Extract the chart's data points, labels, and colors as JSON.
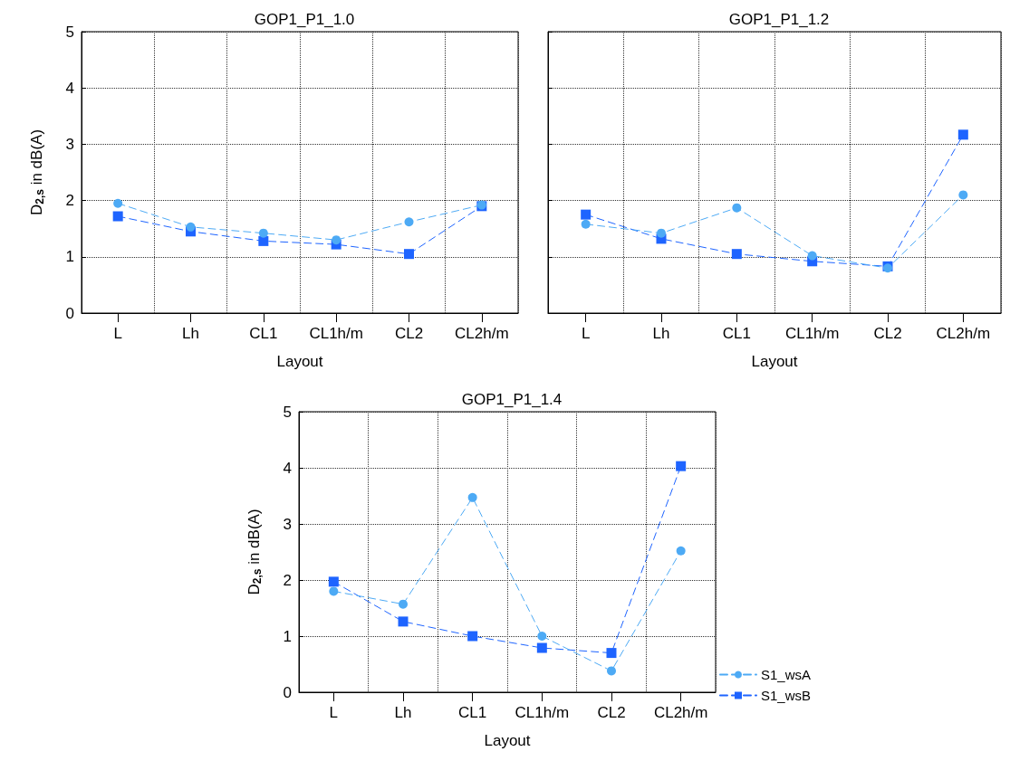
{
  "chart_data": [
    {
      "type": "line",
      "title": "GOP1_P1_1.0",
      "xlabel": "Layout",
      "ylabel": "D$_{2,s}$ in dB(A)",
      "categories": [
        "L",
        "Lh",
        "CL1",
        "CL1h/m",
        "CL2",
        "CL2h/m"
      ],
      "ylim": [
        0,
        5
      ],
      "yticks": [
        0,
        1,
        2,
        3,
        4,
        5
      ],
      "grid": true,
      "legend": false,
      "line_style": "dashed",
      "series": [
        {
          "color": "#4daaf5",
          "marker": "circle",
          "values": [
            1.95,
            1.53,
            1.42,
            1.3,
            1.62,
            1.92
          ]
        },
        {
          "color": "#1e64ff",
          "marker": "square",
          "values": [
            1.72,
            1.45,
            1.28,
            1.22,
            1.05,
            1.9
          ]
        }
      ]
    },
    {
      "type": "line",
      "title": "GOP1_P1_1.2",
      "xlabel": "Layout",
      "categories": [
        "L",
        "Lh",
        "CL1",
        "CL1h/m",
        "CL2",
        "CL2h/m"
      ],
      "ylim": [
        0,
        5
      ],
      "yticks": [
        0,
        1,
        2,
        3,
        4,
        5
      ],
      "tick_labels": "x",
      "grid": true,
      "legend": false,
      "line_style": "dashed",
      "series": [
        {
          "color": "#4daaf5",
          "marker": "circle",
          "values": [
            1.58,
            1.42,
            1.87,
            1.02,
            0.8,
            2.1
          ]
        },
        {
          "color": "#1e64ff",
          "marker": "square",
          "values": [
            1.75,
            1.32,
            1.05,
            0.92,
            0.83,
            3.17
          ]
        }
      ]
    },
    {
      "type": "line",
      "title": "GOP1_P1_1.4",
      "xlabel": "Layout",
      "ylabel": "D$_{2,s}$ in dB(A)",
      "categories": [
        "L",
        "Lh",
        "CL1",
        "CL1h/m",
        "CL2",
        "CL2h/m"
      ],
      "ylim": [
        0,
        5
      ],
      "yticks": [
        0,
        1,
        2,
        3,
        4,
        5
      ],
      "grid": true,
      "legend": "bottom right",
      "line_style": "dashed",
      "series": [
        {
          "name": "S1_wsA",
          "color": "#4daaf5",
          "marker": "circle",
          "values": [
            1.8,
            1.57,
            3.47,
            1.0,
            0.38,
            2.52
          ]
        },
        {
          "name": "S1_wsB",
          "color": "#1e64ff",
          "marker": "square",
          "values": [
            1.97,
            1.26,
            1.0,
            0.79,
            0.7,
            4.03
          ]
        }
      ]
    }
  ]
}
